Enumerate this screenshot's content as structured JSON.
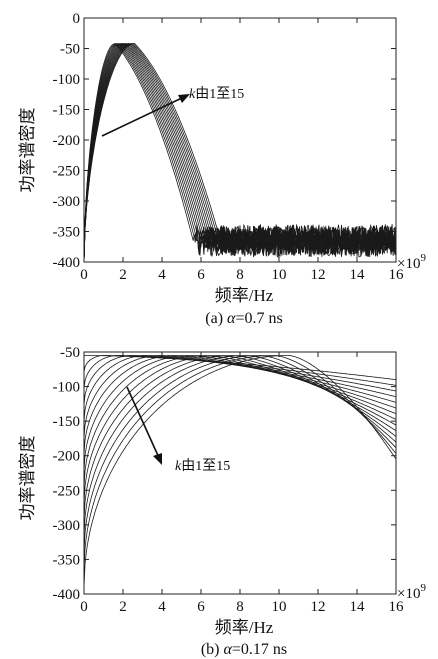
{
  "chart_data": [
    {
      "type": "line",
      "caption_prefix": "(a) ",
      "caption_symbol": "α",
      "caption_value": "=0.7 ns",
      "xlabel": "频率/Hz",
      "ylabel": "功率谱密度",
      "x_exponent_base": "×10",
      "x_exponent_power": "9",
      "xlim": [
        0,
        16
      ],
      "ylim": [
        -400,
        0
      ],
      "xticks": [
        "0",
        "2",
        "4",
        "6",
        "8",
        "10",
        "12",
        "14",
        "16"
      ],
      "yticks": [
        "0",
        "-50",
        "-100",
        "-150",
        "-200",
        "-250",
        "-300",
        "-350",
        "-400"
      ],
      "annotation_k": "k",
      "annotation_text": "由1至15",
      "series_count": 15,
      "series_model": {
        "peak_level": -42,
        "peak_freq_range": [
          1.6,
          2.6
        ],
        "lower_cutoff_range": [
          0.2,
          0.9
        ],
        "upper_cutoff_range": [
          5.6,
          7.0
        ],
        "noise_floor_mean": -365,
        "noise_floor_band": [
          -390,
          -335
        ]
      }
    },
    {
      "type": "line",
      "caption_prefix": "(b) ",
      "caption_symbol": "α",
      "caption_value": "=0.17 ns",
      "xlabel": "频率/Hz",
      "ylabel": "功率谱密度",
      "x_exponent_base": "×10",
      "x_exponent_power": "9",
      "xlim": [
        0,
        16
      ],
      "ylim": [
        -400,
        -50
      ],
      "xticks": [
        "0",
        "2",
        "4",
        "6",
        "8",
        "10",
        "12",
        "14",
        "16"
      ],
      "yticks": [
        "-50",
        "-100",
        "-150",
        "-200",
        "-250",
        "-300",
        "-350",
        "-400"
      ],
      "annotation_k": "k",
      "annotation_text": "由1至15",
      "series_count": 15,
      "series_model": {
        "peak_level": -55,
        "peak_freq_range": [
          0.3,
          10.5
        ],
        "value_at_16_range": [
          -90,
          -205
        ],
        "value_at_0_range": [
          -55,
          -390
        ]
      }
    }
  ]
}
